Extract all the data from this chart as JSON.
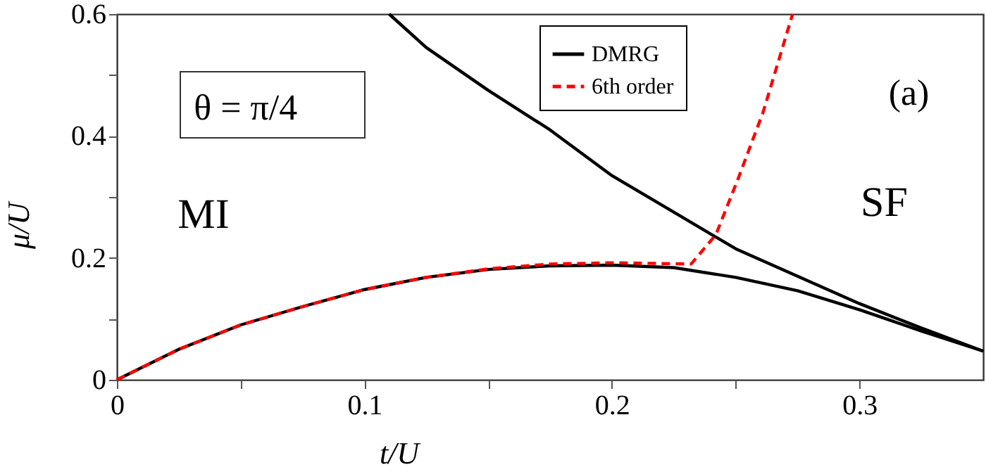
{
  "chart_data": {
    "type": "line",
    "xlabel": "t/U",
    "ylabel": "μ/U",
    "xlim": [
      0,
      0.35
    ],
    "ylim": [
      0,
      0.6
    ],
    "xticks": [
      0,
      {
        "value": 0.05,
        "label": null
      },
      0.1,
      {
        "value": 0.15,
        "label": null
      },
      0.2,
      {
        "value": 0.25,
        "label": null
      },
      0.3
    ],
    "yticks": [
      0,
      {
        "value": 0.1,
        "label": null
      },
      0.2,
      {
        "value": 0.3,
        "label": null
      },
      0.4,
      {
        "value": 0.5,
        "label": null
      },
      0.6
    ],
    "grid": false,
    "legend": "top",
    "marker": "none",
    "annotations": [
      "θ = π/4",
      "MI",
      "SF",
      "(a)"
    ],
    "series": [
      {
        "name": "DMRG",
        "color": "#000000",
        "line_style": "solid",
        "x": [
          0,
          0.025,
          0.05,
          0.075,
          0.1,
          0.125,
          0.15,
          0.175,
          0.2,
          0.225,
          0.25,
          0.275,
          0.3,
          0.325,
          0.35
        ],
        "values": [
          0,
          0.05,
          0.09,
          0.12,
          0.148,
          0.168,
          0.181,
          0.187,
          0.188,
          0.184,
          0.168,
          0.146,
          0.115,
          0.08,
          0.047
        ]
      },
      {
        "color": "#000000",
        "line_style": "solid",
        "x": [
          0.11,
          0.125,
          0.15,
          0.175,
          0.2,
          0.225,
          0.25,
          0.275,
          0.3,
          0.325,
          0.35
        ],
        "values": [
          0.6,
          0.545,
          0.475,
          0.41,
          0.335,
          0.275,
          0.215,
          0.17,
          0.125,
          0.085,
          0.047
        ]
      },
      {
        "name": "6th order",
        "color": "#ff0000",
        "line_style": "dashed",
        "x": [
          0,
          0.025,
          0.05,
          0.075,
          0.1,
          0.125,
          0.15,
          0.175,
          0.2,
          0.232,
          0.242,
          0.251,
          0.261,
          0.273
        ],
        "values": [
          0,
          0.05,
          0.09,
          0.12,
          0.148,
          0.168,
          0.182,
          0.19,
          0.192,
          0.19,
          0.238,
          0.33,
          0.438,
          0.6
        ]
      }
    ]
  }
}
